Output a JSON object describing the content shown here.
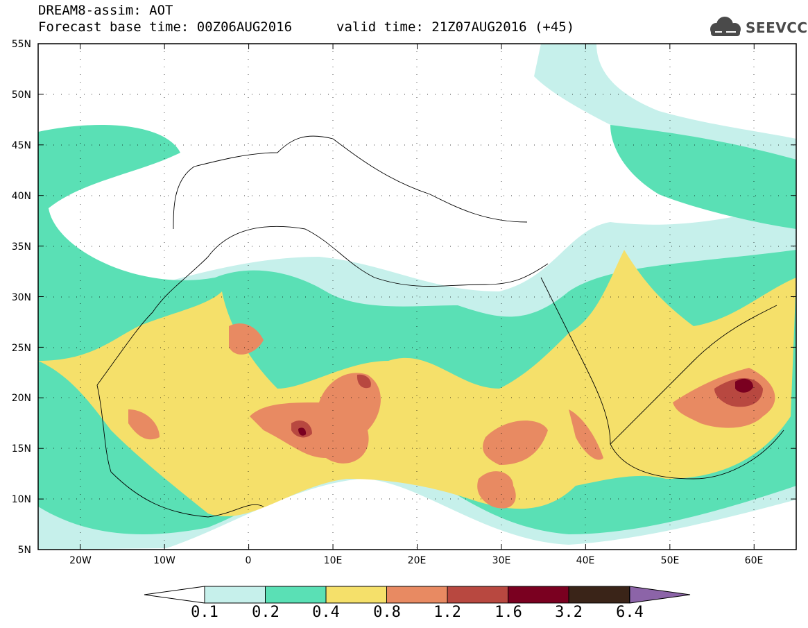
{
  "title": {
    "line1": "DREAM8-assim: AOT",
    "line2": "Forecast base time: 00Z06AUG2016",
    "line2b": "valid time: 21Z07AUG2016 (+45)"
  },
  "logo": {
    "text": "SEEVCCC",
    "icon": "cloud-icon"
  },
  "map": {
    "lat_labels": [
      "55N",
      "50N",
      "45N",
      "40N",
      "35N",
      "30N",
      "25N",
      "20N",
      "15N",
      "10N",
      "5N"
    ],
    "lon_labels": [
      "20W",
      "10W",
      "0",
      "10E",
      "20E",
      "30E",
      "40E",
      "50E",
      "60E"
    ],
    "lat_range": [
      5,
      55
    ],
    "lon_range": [
      -25,
      65
    ],
    "grid": "dotted"
  },
  "colorbar": {
    "labels": [
      "0.1",
      "0.2",
      "0.4",
      "0.8",
      "1.2",
      "1.6",
      "3.2",
      "6.4"
    ],
    "colors": [
      "#ffffff",
      "#c6f0eb",
      "#5ae0b5",
      "#f5e06a",
      "#e88a62",
      "#b84840",
      "#7a0020",
      "#3a2418",
      "#8c64a8"
    ]
  }
}
